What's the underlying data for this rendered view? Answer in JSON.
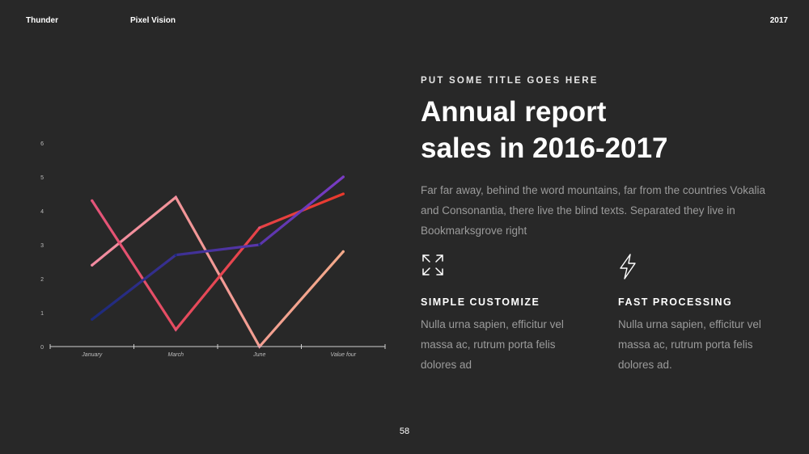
{
  "header": {
    "brand": "Thunder",
    "product": "Pixel Vision",
    "year": "2017"
  },
  "content": {
    "eyebrow": "PUT SOME TITLE GOES HERE",
    "title_line1": "Annual report",
    "title_line2": "sales in 2016-2017",
    "description": "Far far away, behind the word mountains, far from the countries Vokalia and Consonantia, there live the blind texts. Separated they live in Bookmarksgrove right"
  },
  "features": [
    {
      "icon": "expand-arrows-icon",
      "title": "SIMPLE CUSTOMIZE",
      "text": "Nulla urna sapien, efficitur vel massa ac, rutrum porta felis dolores ad"
    },
    {
      "icon": "lightning-icon",
      "title": "FAST PROCESSING",
      "text": "Nulla urna sapien, efficitur vel massa ac, rutrum porta felis dolores ad."
    }
  ],
  "page_number": "58",
  "colors": {
    "background": "#282828",
    "text_muted": "#9b9b9b",
    "axis": "#cfcfcf"
  },
  "chart_data": {
    "type": "line",
    "categories": [
      "January",
      "March",
      "June",
      "Value four"
    ],
    "ylim": [
      0,
      6
    ],
    "y_ticks": [
      "0",
      "1",
      "2",
      "3",
      "4",
      "5",
      "6"
    ],
    "grid": false,
    "series": [
      {
        "values": [
          2.4,
          4.4,
          0,
          2.8
        ],
        "color_start": "#f28aa0",
        "color_end": "#f3a98a"
      },
      {
        "values": [
          4.3,
          0.5,
          3.5,
          4.5
        ],
        "color_start": "#e4557a",
        "color_end": "#e8392c"
      },
      {
        "values": [
          0.8,
          2.7,
          3.0,
          5.0
        ],
        "color_start": "#1b2a7a",
        "color_end": "#7a3cc4"
      }
    ]
  }
}
